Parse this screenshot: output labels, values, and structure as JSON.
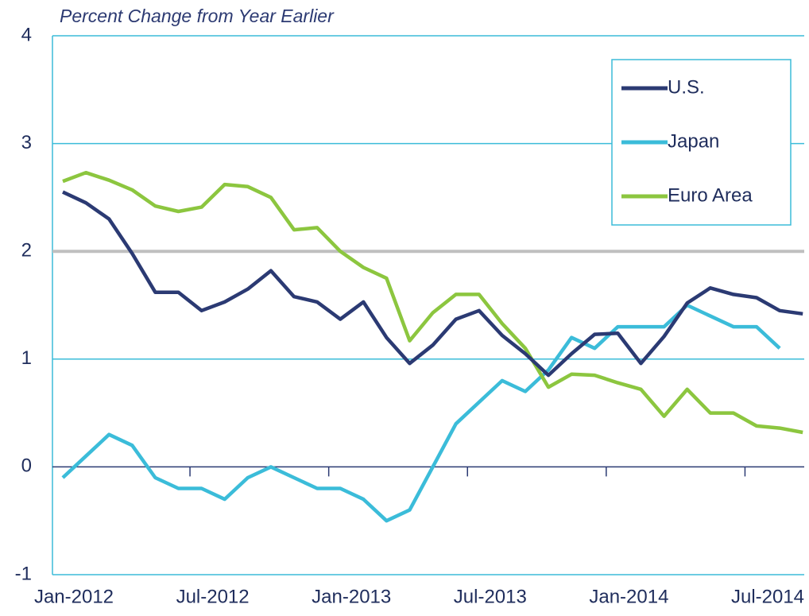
{
  "chart_data": {
    "type": "line",
    "title": "Percent Change from Year Earlier",
    "categories": [
      "Jan-2012",
      null,
      null,
      null,
      null,
      null,
      "Jul-2012",
      null,
      null,
      null,
      null,
      null,
      "Jan-2013",
      null,
      null,
      null,
      null,
      null,
      "Jul-2013",
      null,
      null,
      null,
      null,
      null,
      "Jan-2014",
      null,
      null,
      null,
      null,
      null,
      "Jul-2014",
      null,
      null
    ],
    "series": [
      {
        "name": "U.S.",
        "color": "#2b3a73",
        "values": [
          2.55,
          2.45,
          2.3,
          1.98,
          1.62,
          1.62,
          1.45,
          1.53,
          1.65,
          1.82,
          1.58,
          1.53,
          1.37,
          1.53,
          1.2,
          0.96,
          1.13,
          1.37,
          1.45,
          1.22,
          1.05,
          0.85,
          1.05,
          1.23,
          1.24,
          0.96,
          1.21,
          1.52,
          1.66,
          1.6,
          1.57,
          1.45,
          1.42
        ]
      },
      {
        "name": "Japan",
        "color": "#3bbcd9",
        "values": [
          -0.1,
          0.1,
          0.3,
          0.2,
          -0.1,
          -0.2,
          -0.2,
          -0.3,
          -0.1,
          0.0,
          -0.1,
          -0.2,
          -0.2,
          -0.3,
          -0.5,
          -0.4,
          0.0,
          0.4,
          0.6,
          0.8,
          0.7,
          0.9,
          1.2,
          1.1,
          1.3,
          1.3,
          1.3,
          1.5,
          1.4,
          1.3,
          1.3,
          1.1,
          null
        ]
      },
      {
        "name": "Euro Area",
        "color": "#8cc63f",
        "values": [
          2.65,
          2.73,
          2.66,
          2.57,
          2.42,
          2.37,
          2.41,
          2.62,
          2.6,
          2.5,
          2.2,
          2.22,
          2.0,
          1.85,
          1.75,
          1.17,
          1.43,
          1.6,
          1.6,
          1.33,
          1.1,
          0.74,
          0.86,
          0.85,
          0.78,
          0.72,
          0.47,
          0.72,
          0.5,
          0.5,
          0.38,
          0.36,
          0.32
        ]
      }
    ],
    "reference_line": {
      "value": 2,
      "color": "#bfbfbf"
    },
    "ylim": [
      -1,
      4
    ],
    "yticks": [
      -1,
      0,
      1,
      2,
      3,
      4
    ],
    "grid": true,
    "grid_color": "#3bbcd9",
    "legend": "upper right"
  }
}
